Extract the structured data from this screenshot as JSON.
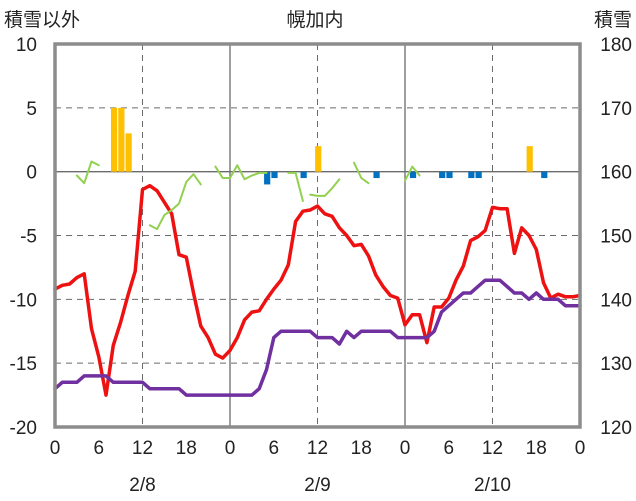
{
  "chart_data": {
    "type": "line",
    "title": "幌加内",
    "left_axis": {
      "label": "積雪以外",
      "ylim": [
        -20,
        10
      ],
      "ticks": [
        10,
        5,
        0,
        -5,
        -10,
        -15,
        -20
      ]
    },
    "right_axis": {
      "label": "積雪",
      "ylim": [
        120,
        180
      ],
      "ticks": [
        180,
        170,
        160,
        150,
        140,
        130,
        120
      ]
    },
    "x_axis": {
      "xlim": [
        0,
        72
      ],
      "tick_hours": [
        0,
        6,
        12,
        18,
        24,
        30,
        36,
        42,
        48,
        54,
        60,
        66,
        72
      ],
      "tick_labels": [
        "0",
        "6",
        "12",
        "18",
        "0",
        "6",
        "12",
        "18",
        "0",
        "6",
        "12",
        "18",
        "0"
      ],
      "day_labels": [
        {
          "hour": 12,
          "label": "2/8"
        },
        {
          "hour": 36,
          "label": "2/9"
        },
        {
          "hour": 60,
          "label": "2/10"
        }
      ],
      "day_boundaries": [
        24,
        48
      ],
      "dashed_gridlines": [
        12,
        36,
        60
      ]
    },
    "colors": {
      "temperature": "#ee1111",
      "snow_depth": "#7030a0",
      "wind_speed": "#92d050",
      "snowfall": "#ffc000",
      "negative_bar": "#0070c0",
      "grid": "#6b6b6b",
      "frame": "#8c8c8c"
    },
    "series": [
      {
        "key": "temperature",
        "axis": "left",
        "x": [
          0,
          1,
          2,
          3,
          4,
          5,
          6,
          7,
          8,
          9,
          10,
          11,
          12,
          13,
          14,
          15,
          16,
          17,
          18,
          19,
          20,
          21,
          22,
          23,
          24,
          25,
          26,
          27,
          28,
          29,
          30,
          31,
          32,
          33,
          34,
          35,
          36,
          37,
          38,
          39,
          40,
          41,
          42,
          43,
          44,
          45,
          46,
          47,
          48,
          49,
          50,
          51,
          52,
          53,
          54,
          55,
          56,
          57,
          58,
          59,
          60,
          61,
          62,
          63,
          64,
          65,
          66,
          67,
          68,
          69,
          70,
          71,
          72
        ],
        "y": [
          -9.2,
          -8.9,
          -8.8,
          -8.3,
          -8.0,
          -12.3,
          -14.5,
          -17.5,
          -13.6,
          -11.8,
          -9.7,
          -7.8,
          -1.4,
          -1.1,
          -1.5,
          -2.4,
          -3.3,
          -6.5,
          -6.7,
          -9.5,
          -12.1,
          -13.0,
          -14.3,
          -14.6,
          -14.0,
          -13.0,
          -11.6,
          -11.0,
          -10.9,
          -10.0,
          -9.2,
          -8.5,
          -7.3,
          -3.9,
          -3.1,
          -3.0,
          -2.7,
          -3.3,
          -3.5,
          -4.4,
          -5.0,
          -5.8,
          -5.7,
          -6.6,
          -8.1,
          -9.0,
          -9.7,
          -9.9,
          -12.0,
          -11.2,
          -11.2,
          -13.4,
          -10.6,
          -10.6,
          -9.9,
          -8.5,
          -7.4,
          -5.4,
          -5.1,
          -4.6,
          -2.8,
          -2.9,
          -2.9,
          -6.4,
          -4.4,
          -5.0,
          -6.1,
          -8.7,
          -9.9,
          -9.6,
          -9.8,
          -9.8,
          -9.7
        ]
      },
      {
        "key": "snow_depth",
        "axis": "right",
        "x": [
          0,
          1,
          2,
          3,
          4,
          5,
          6,
          7,
          8,
          9,
          10,
          11,
          12,
          13,
          14,
          15,
          16,
          17,
          18,
          19,
          20,
          21,
          22,
          23,
          24,
          25,
          26,
          27,
          28,
          29,
          30,
          31,
          32,
          33,
          34,
          35,
          36,
          37,
          38,
          39,
          40,
          41,
          42,
          43,
          44,
          45,
          46,
          47,
          48,
          49,
          50,
          51,
          52,
          53,
          54,
          55,
          56,
          57,
          58,
          59,
          60,
          61,
          62,
          63,
          64,
          65,
          66,
          67,
          68,
          69,
          70,
          71,
          72
        ],
        "y": [
          126,
          127,
          127,
          127,
          128,
          128,
          128,
          128,
          127,
          127,
          127,
          127,
          127,
          126,
          126,
          126,
          126,
          126,
          125,
          125,
          125,
          125,
          125,
          125,
          125,
          125,
          125,
          125,
          126,
          129,
          134,
          135,
          135,
          135,
          135,
          135,
          134,
          134,
          134,
          133,
          135,
          134,
          135,
          135,
          135,
          135,
          135,
          134,
          134,
          134,
          134,
          134,
          135,
          138,
          139,
          140,
          141,
          141,
          142,
          143,
          143,
          143,
          142,
          141,
          141,
          140,
          141,
          140,
          140,
          140,
          139,
          139,
          139
        ]
      },
      {
        "key": "wind_speed",
        "axis": "left",
        "x": [
          3,
          4,
          5,
          6,
          13,
          14,
          15,
          16,
          17,
          18,
          19,
          20,
          22,
          23,
          24,
          25,
          26,
          27,
          28,
          29,
          32,
          33,
          34,
          35,
          36,
          37,
          38,
          39,
          41,
          42,
          43,
          48,
          49,
          50
        ],
        "y": [
          -0.3,
          -0.9,
          0.8,
          0.5,
          -4.2,
          -4.5,
          -3.4,
          -3.0,
          -2.5,
          -0.8,
          -0.2,
          -1.0,
          0.4,
          -0.5,
          -0.5,
          0.5,
          -0.6,
          -0.3,
          -0.1,
          -0.1,
          -0.1,
          -0.1,
          -2.3,
          -1.8,
          -1.9,
          -1.9,
          -1.3,
          -0.6,
          0.7,
          -0.5,
          -0.9,
          -0.7,
          0.4,
          -0.3
        ],
        "segments": [
          [
            0,
            3
          ],
          [
            4,
            11
          ],
          [
            12,
            19
          ],
          [
            20,
            22
          ],
          [
            23,
            27
          ],
          [
            28,
            30
          ],
          [
            31,
            33
          ]
        ]
      },
      {
        "key": "snowfall",
        "axis": "left",
        "style": "bar",
        "x": [
          8,
          9,
          10,
          36,
          65
        ],
        "y": [
          5.0,
          5.0,
          3.0,
          2.0,
          2.0
        ]
      },
      {
        "key": "negative_bar",
        "axis": "left",
        "style": "bar",
        "x": [
          29,
          30,
          34,
          44,
          49,
          53,
          54,
          57,
          58,
          67
        ],
        "y": [
          -1.0,
          -0.5,
          -0.5,
          -0.5,
          -0.5,
          -0.5,
          -0.5,
          -0.5,
          -0.5,
          -0.5
        ]
      }
    ]
  }
}
